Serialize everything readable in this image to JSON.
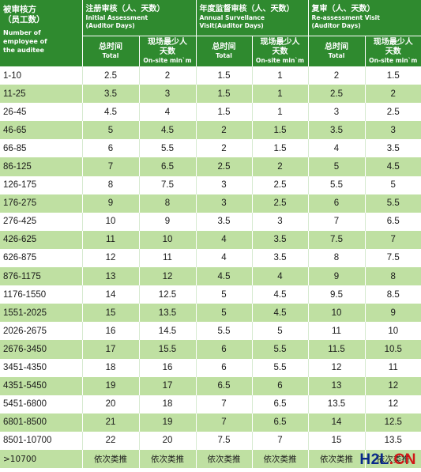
{
  "header": {
    "employees_zh_1": "被审核方",
    "employees_zh_2": "（员工数）",
    "employees_en_1": "Number of",
    "employees_en_2": "employee of",
    "employees_en_3": "the auditee",
    "groups": [
      {
        "zh": "注册审核（人、天数）",
        "en1": "Initial Assessment",
        "en2": "(Auditor Days)"
      },
      {
        "zh": "年度监督审核（人、天数）",
        "en1": "Annual Survellance",
        "en2": "Visit(Auditor Days)"
      },
      {
        "zh": "复审（人、天数）",
        "en1": "Re-assessment Visit",
        "en2": "(Auditor Days)"
      }
    ],
    "total_zh": "总时间",
    "total_en": "Total",
    "onsite_zh_1": "现场最少人",
    "onsite_zh_2": "天数",
    "onsite_en": "On-site min`m"
  },
  "rows": [
    [
      "1-10",
      "2.5",
      "2",
      "1.5",
      "1",
      "2",
      "1.5"
    ],
    [
      "11-25",
      "3.5",
      "3",
      "1.5",
      "1",
      "2.5",
      "2"
    ],
    [
      "26-45",
      "4.5",
      "4",
      "1.5",
      "1",
      "3",
      "2.5"
    ],
    [
      "46-65",
      "5",
      "4.5",
      "2",
      "1.5",
      "3.5",
      "3"
    ],
    [
      "66-85",
      "6",
      "5.5",
      "2",
      "1.5",
      "4",
      "3.5"
    ],
    [
      "86-125",
      "7",
      "6.5",
      "2.5",
      "2",
      "5",
      "4.5"
    ],
    [
      "126-175",
      "8",
      "7.5",
      "3",
      "2.5",
      "5.5",
      "5"
    ],
    [
      "176-275",
      "9",
      "8",
      "3",
      "2.5",
      "6",
      "5.5"
    ],
    [
      "276-425",
      "10",
      "9",
      "3.5",
      "3",
      "7",
      "6.5"
    ],
    [
      "426-625",
      "11",
      "10",
      "4",
      "3.5",
      "7.5",
      "7"
    ],
    [
      "626-875",
      "12",
      "11",
      "4",
      "3.5",
      "8",
      "7.5"
    ],
    [
      "876-1175",
      "13",
      "12",
      "4.5",
      "4",
      "9",
      "8"
    ],
    [
      "1176-1550",
      "14",
      "12.5",
      "5",
      "4.5",
      "9.5",
      "8.5"
    ],
    [
      "1551-2025",
      "15",
      "13.5",
      "5",
      "4.5",
      "10",
      "9"
    ],
    [
      "2026-2675",
      "16",
      "14.5",
      "5.5",
      "5",
      "11",
      "10"
    ],
    [
      "2676-3450",
      "17",
      "15.5",
      "6",
      "5.5",
      "11.5",
      "10.5"
    ],
    [
      "3451-4350",
      "18",
      "16",
      "6",
      "5.5",
      "12",
      "11"
    ],
    [
      "4351-5450",
      "19",
      "17",
      "6.5",
      "6",
      "13",
      "12"
    ],
    [
      "5451-6800",
      "20",
      "18",
      "7",
      "6.5",
      "13.5",
      "12"
    ],
    [
      "6801-8500",
      "21",
      "19",
      "7",
      "6.5",
      "14",
      "12.5"
    ],
    [
      "8501-10700",
      "22",
      "20",
      "7.5",
      "7",
      "15",
      "13.5"
    ],
    [
      ">10700",
      "依次类推",
      "依次类推",
      "依次类推",
      "依次类推",
      "依次类推",
      "依次类推"
    ]
  ],
  "watermark": {
    "part1": "H2L",
    "part2": ".CN"
  },
  "colors": {
    "header_green": "#2f8a2f",
    "row_green": "#bfe0a2"
  }
}
